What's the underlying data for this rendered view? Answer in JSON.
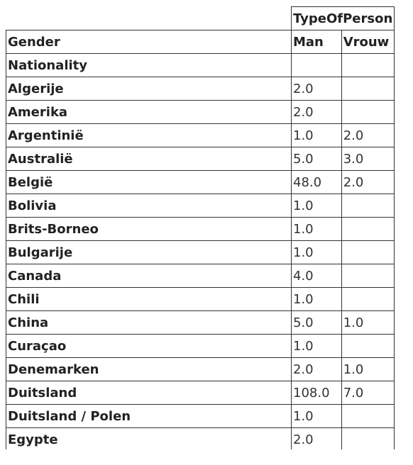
{
  "table": {
    "column_group_header": "TypeOfPerson",
    "row_dim_label": "Gender",
    "row_index_label": "Nationality",
    "columns": [
      "Man",
      "Vrouw"
    ],
    "rows": [
      {
        "label": "Algerije",
        "man": "2.0",
        "vrouw": ""
      },
      {
        "label": "Amerika",
        "man": "2.0",
        "vrouw": ""
      },
      {
        "label": "Argentinië",
        "man": "1.0",
        "vrouw": "2.0"
      },
      {
        "label": "Australië",
        "man": "5.0",
        "vrouw": "3.0"
      },
      {
        "label": "België",
        "man": "48.0",
        "vrouw": "2.0"
      },
      {
        "label": "Bolivia",
        "man": "1.0",
        "vrouw": ""
      },
      {
        "label": "Brits-Borneo",
        "man": "1.0",
        "vrouw": ""
      },
      {
        "label": "Bulgarije",
        "man": "1.0",
        "vrouw": ""
      },
      {
        "label": "Canada",
        "man": "4.0",
        "vrouw": ""
      },
      {
        "label": "Chili",
        "man": "1.0",
        "vrouw": ""
      },
      {
        "label": "China",
        "man": "5.0",
        "vrouw": "1.0"
      },
      {
        "label": "Curaçao",
        "man": "1.0",
        "vrouw": ""
      },
      {
        "label": "Denemarken",
        "man": "2.0",
        "vrouw": "1.0"
      },
      {
        "label": "Duitsland",
        "man": "108.0",
        "vrouw": "7.0"
      },
      {
        "label": "Duitsland / Polen",
        "man": "1.0",
        "vrouw": ""
      },
      {
        "label": "Egypte",
        "man": "2.0",
        "vrouw": ""
      }
    ]
  }
}
